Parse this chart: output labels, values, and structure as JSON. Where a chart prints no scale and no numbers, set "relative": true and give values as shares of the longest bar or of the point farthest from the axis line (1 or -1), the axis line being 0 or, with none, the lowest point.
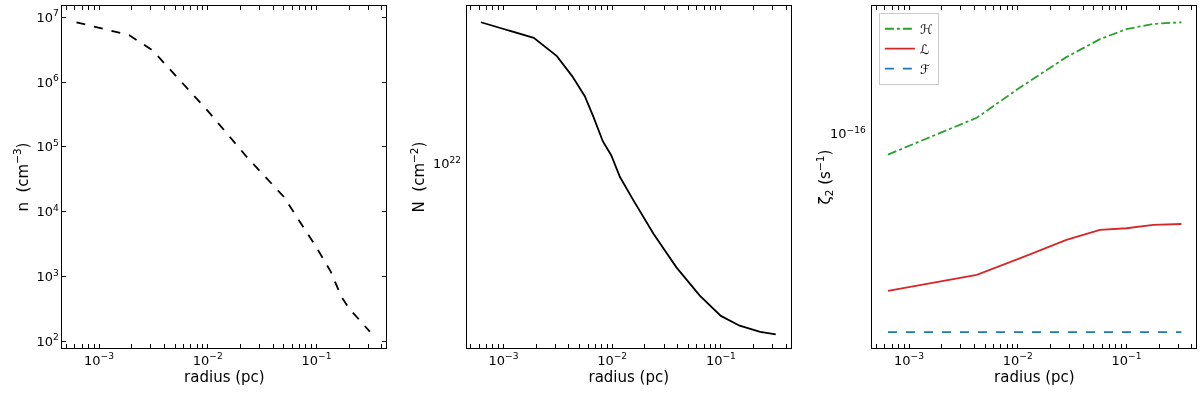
{
  "chart_data": [
    {
      "type": "line",
      "xlabel": "radius (pc)",
      "ylabel": "n  (cm$^{−3}$)",
      "log": "xy",
      "legend": false,
      "xlim": [
        0.00046,
        0.44
      ],
      "ylim": [
        78,
        15000000
      ],
      "xticks": [
        {
          "value": 0.0005,
          "label": null
        },
        {
          "value": 0.0006,
          "label": null
        },
        {
          "value": 0.0007,
          "label": null
        },
        {
          "value": 0.0008,
          "label": null
        },
        {
          "value": 0.0009,
          "label": null
        },
        {
          "value": 0.001,
          "label": "10$^{−3}$"
        },
        {
          "value": 0.002,
          "label": null
        },
        {
          "value": 0.003,
          "label": null
        },
        {
          "value": 0.004,
          "label": null
        },
        {
          "value": 0.005,
          "label": null
        },
        {
          "value": 0.006,
          "label": null
        },
        {
          "value": 0.007,
          "label": null
        },
        {
          "value": 0.008,
          "label": null
        },
        {
          "value": 0.009,
          "label": null
        },
        {
          "value": 0.01,
          "label": "10$^{−2}$"
        },
        {
          "value": 0.02,
          "label": null
        },
        {
          "value": 0.03,
          "label": null
        },
        {
          "value": 0.04,
          "label": null
        },
        {
          "value": 0.05,
          "label": null
        },
        {
          "value": 0.06,
          "label": null
        },
        {
          "value": 0.07,
          "label": null
        },
        {
          "value": 0.08,
          "label": null
        },
        {
          "value": 0.09,
          "label": null
        },
        {
          "value": 0.1,
          "label": "10$^{−1}$"
        },
        {
          "value": 0.2,
          "label": null
        },
        {
          "value": 0.3,
          "label": null
        },
        {
          "value": 0.4,
          "label": null
        }
      ],
      "yticks": [
        {
          "value": 100,
          "label": "10$^{2}$"
        },
        {
          "value": 1000,
          "label": "10$^{3}$"
        },
        {
          "value": 10000,
          "label": "10$^{4}$"
        },
        {
          "value": 100000,
          "label": "10$^{5}$"
        },
        {
          "value": 1000000,
          "label": "10$^{6}$"
        },
        {
          "value": 10000000,
          "label": "10$^{7}$"
        }
      ],
      "x": [
        0.00062,
        0.0019,
        0.0031,
        0.0052,
        0.01,
        0.023,
        0.05,
        0.1,
        0.135,
        0.17,
        0.2,
        0.31
      ],
      "series": [
        {
          "color": "#000000",
          "line_style": "dashed",
          "values": [
            8400000,
            5300000,
            3100000,
            1200000,
            360000,
            69000,
            17000,
            2800,
            1200,
            480,
            320,
            140
          ]
        }
      ]
    },
    {
      "type": "line",
      "relative": true,
      "xlabel": "radius (pc)",
      "ylabel": "N  (cm$^{−2}$)",
      "log": "x",
      "legend": false,
      "xlim": [
        0.00046,
        0.44
      ],
      "xticks": [
        {
          "value": 0.0005,
          "label": null
        },
        {
          "value": 0.0006,
          "label": null
        },
        {
          "value": 0.0007,
          "label": null
        },
        {
          "value": 0.0008,
          "label": null
        },
        {
          "value": 0.0009,
          "label": null
        },
        {
          "value": 0.001,
          "label": "10$^{−3}$"
        },
        {
          "value": 0.002,
          "label": null
        },
        {
          "value": 0.003,
          "label": null
        },
        {
          "value": 0.004,
          "label": null
        },
        {
          "value": 0.005,
          "label": null
        },
        {
          "value": 0.006,
          "label": null
        },
        {
          "value": 0.007,
          "label": null
        },
        {
          "value": 0.008,
          "label": null
        },
        {
          "value": 0.009,
          "label": null
        },
        {
          "value": 0.01,
          "label": "10$^{−2}$"
        },
        {
          "value": 0.02,
          "label": null
        },
        {
          "value": 0.03,
          "label": null
        },
        {
          "value": 0.04,
          "label": null
        },
        {
          "value": 0.05,
          "label": null
        },
        {
          "value": 0.06,
          "label": null
        },
        {
          "value": 0.07,
          "label": null
        },
        {
          "value": 0.08,
          "label": null
        },
        {
          "value": 0.09,
          "label": null
        },
        {
          "value": 0.1,
          "label": "10$^{−1}$"
        },
        {
          "value": 0.2,
          "label": null
        },
        {
          "value": 0.3,
          "label": null
        },
        {
          "value": 0.4,
          "label": null
        }
      ],
      "annotations": [
        "10$^{22}$"
      ],
      "x": [
        0.00062,
        0.0019,
        0.0031,
        0.0043,
        0.0056,
        0.0067,
        0.0082,
        0.0098,
        0.0118,
        0.0156,
        0.024,
        0.039,
        0.064,
        0.1,
        0.149,
        0.23,
        0.32
      ],
      "series": [
        {
          "color": "#000000",
          "line_style": "solid",
          "values": [
            1,
            0.952,
            0.896,
            0.834,
            0.773,
            0.711,
            0.635,
            0.592,
            0.525,
            0.455,
            0.351,
            0.248,
            0.161,
            0.099,
            0.069,
            0.05,
            0.042
          ]
        }
      ]
    },
    {
      "type": "line",
      "relative": true,
      "xlabel": "radius (pc)",
      "ylabel": "ζ$_{2}$ (s$^{−1}$)",
      "log": "x",
      "legend": "top left",
      "xlim": [
        0.00046,
        0.44
      ],
      "xticks": [
        {
          "value": 0.0005,
          "label": null
        },
        {
          "value": 0.0006,
          "label": null
        },
        {
          "value": 0.0007,
          "label": null
        },
        {
          "value": 0.0008,
          "label": null
        },
        {
          "value": 0.0009,
          "label": null
        },
        {
          "value": 0.001,
          "label": "10$^{−3}$"
        },
        {
          "value": 0.002,
          "label": null
        },
        {
          "value": 0.003,
          "label": null
        },
        {
          "value": 0.004,
          "label": null
        },
        {
          "value": 0.005,
          "label": null
        },
        {
          "value": 0.006,
          "label": null
        },
        {
          "value": 0.007,
          "label": null
        },
        {
          "value": 0.008,
          "label": null
        },
        {
          "value": 0.009,
          "label": null
        },
        {
          "value": 0.01,
          "label": "10$^{−2}$"
        },
        {
          "value": 0.02,
          "label": null
        },
        {
          "value": 0.03,
          "label": null
        },
        {
          "value": 0.04,
          "label": null
        },
        {
          "value": 0.05,
          "label": null
        },
        {
          "value": 0.06,
          "label": null
        },
        {
          "value": 0.07,
          "label": null
        },
        {
          "value": 0.08,
          "label": null
        },
        {
          "value": 0.09,
          "label": null
        },
        {
          "value": 0.1,
          "label": "10$^{−1}$"
        },
        {
          "value": 0.2,
          "label": null
        },
        {
          "value": 0.3,
          "label": null
        },
        {
          "value": 0.4,
          "label": null
        }
      ],
      "annotations": [
        "10$^{−16}$"
      ],
      "x": [
        0.00064,
        0.0042,
        0.01,
        0.028,
        0.057,
        0.1,
        0.177,
        0.32
      ],
      "series": [
        {
          "name": "ℋ",
          "color": "#2ca02c",
          "line_style": "dashdot",
          "values": [
            0.594,
            0.707,
            0.795,
            0.893,
            0.948,
            0.979,
            0.995,
            1
          ]
        },
        {
          "name": "ℒ",
          "color": "#d62728",
          "line_style": "solid",
          "values": [
            0.176,
            0.225,
            0.273,
            0.332,
            0.363,
            0.368,
            0.378,
            0.381
          ]
        },
        {
          "name": "ℱ",
          "color": "#1f77b4",
          "line_style": "dashed",
          "x": [
            0.00064,
            0.32
          ],
          "values": [
            0.049,
            0.049
          ]
        }
      ]
    }
  ]
}
